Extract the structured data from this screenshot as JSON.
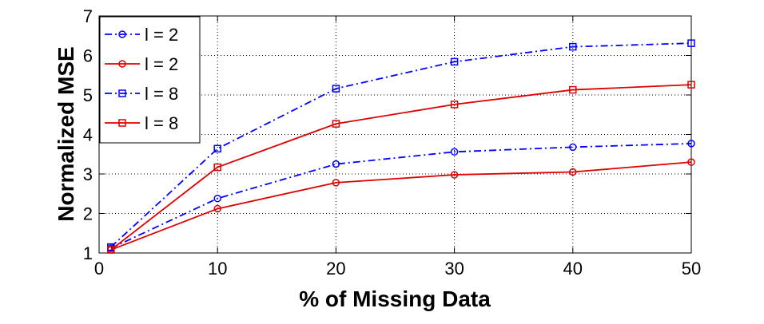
{
  "chart_data": {
    "type": "line",
    "xlabel": "% of Missing Data",
    "ylabel": "Normalized MSE",
    "xlim": [
      0,
      50
    ],
    "ylim": [
      1,
      7
    ],
    "xticks": [
      0,
      10,
      20,
      30,
      40,
      50
    ],
    "yticks": [
      1,
      2,
      3,
      4,
      5,
      6,
      7
    ],
    "grid": true,
    "legend_position": "top-left",
    "series": [
      {
        "name": "l = 2",
        "color": "#0000ff",
        "line_style": "dash-dot",
        "marker": "circle",
        "x": [
          1,
          10,
          20,
          30,
          40,
          50
        ],
        "y": [
          1.12,
          2.38,
          3.25,
          3.56,
          3.68,
          3.77
        ]
      },
      {
        "name": "l = 2",
        "color": "#dd0000",
        "line_style": "solid",
        "marker": "circle",
        "x": [
          1,
          10,
          20,
          30,
          40,
          50
        ],
        "y": [
          1.08,
          2.12,
          2.78,
          2.98,
          3.05,
          3.3
        ]
      },
      {
        "name": "l = 8",
        "color": "#0000ff",
        "line_style": "dash-dot",
        "marker": "square",
        "x": [
          1,
          10,
          20,
          30,
          40,
          50
        ],
        "y": [
          1.15,
          3.64,
          5.16,
          5.84,
          6.22,
          6.31
        ]
      },
      {
        "name": "l = 8",
        "color": "#dd0000",
        "line_style": "solid",
        "marker": "square",
        "x": [
          1,
          10,
          20,
          30,
          40,
          50
        ],
        "y": [
          1.08,
          3.17,
          4.27,
          4.76,
          5.13,
          5.26
        ]
      }
    ]
  }
}
